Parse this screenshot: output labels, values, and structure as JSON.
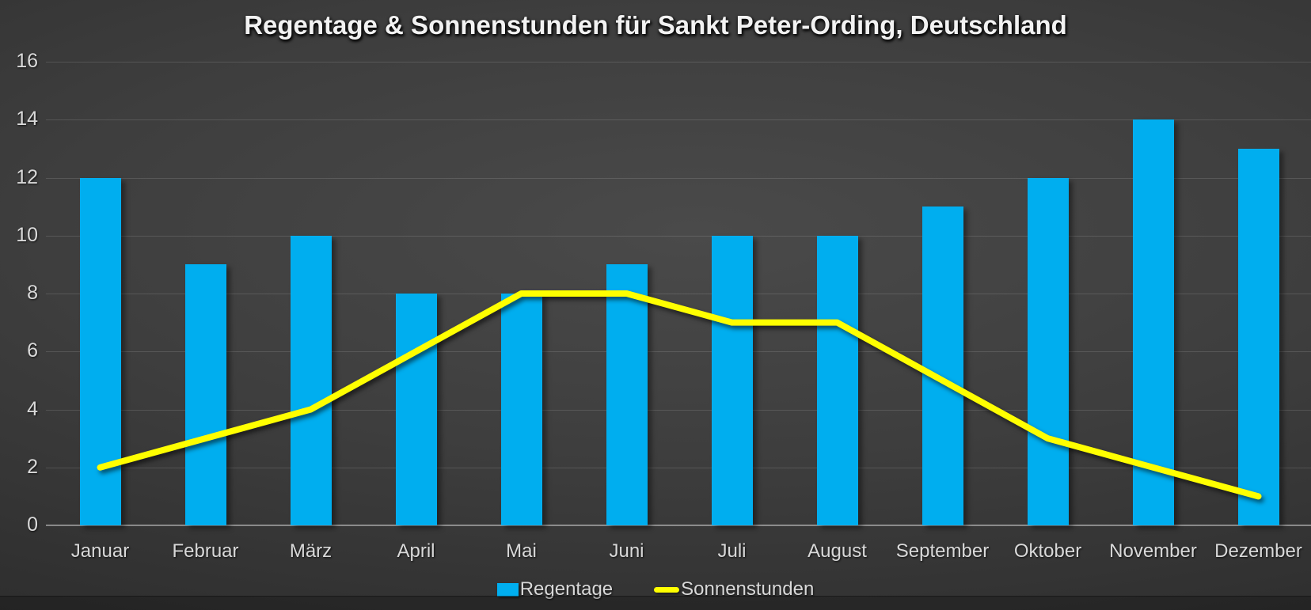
{
  "chart_data": {
    "type": "combo-bar-line",
    "title": "Regentage & Sonnenstunden für Sankt Peter-Ording, Deutschland",
    "categories": [
      "Januar",
      "Februar",
      "März",
      "April",
      "Mai",
      "Juni",
      "Juli",
      "August",
      "September",
      "Oktober",
      "November",
      "Dezember"
    ],
    "series": [
      {
        "name": "Regentage",
        "type": "bar",
        "color": "#00AEEF",
        "values": [
          12,
          9,
          10,
          8,
          8,
          9,
          10,
          10,
          11,
          12,
          14,
          13
        ]
      },
      {
        "name": "Sonnenstunden",
        "type": "line",
        "color": "#FFFF00",
        "values": [
          2,
          3,
          4,
          6,
          8,
          8,
          7,
          7,
          5,
          3,
          2,
          1
        ]
      }
    ],
    "xlabel": "",
    "ylabel": "",
    "ylim": [
      0,
      16
    ],
    "yticks": [
      0,
      2,
      4,
      6,
      8,
      10,
      12,
      14,
      16
    ],
    "grid": true,
    "legend_position": "bottom",
    "colors": {
      "axis_labels": "#D9D9D9",
      "title": "#F2F2F2",
      "gridline": "rgba(255,255,255,0.13)",
      "background_center": "#4A4A4A",
      "background_edge": "#262626"
    }
  }
}
